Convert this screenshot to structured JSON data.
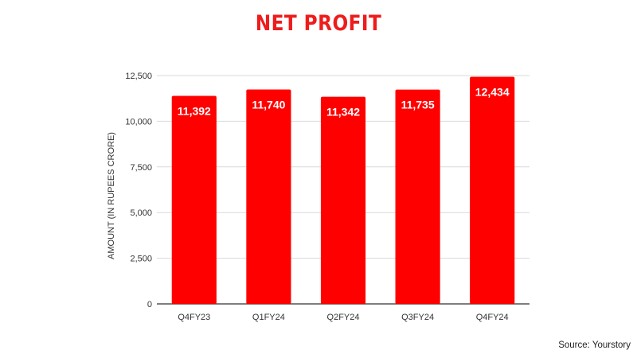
{
  "chart_data": {
    "type": "bar",
    "title": "NET PROFIT",
    "ylabel": "AMOUNT (IN RUPEES CRORE)",
    "xlabel": "",
    "categories": [
      "Q4FY23",
      "Q1FY24",
      "Q2FY24",
      "Q3FY24",
      "Q4FY24"
    ],
    "values": [
      11392,
      11740,
      11342,
      11735,
      12434
    ],
    "data_labels": [
      "11,392",
      "11,740",
      "11,342",
      "11,735",
      "12,434"
    ],
    "yticks": [
      0,
      2500,
      5000,
      7500,
      10000,
      12500
    ],
    "ytick_labels": [
      "0",
      "2,500",
      "5,000",
      "7,500",
      "10,000",
      "12,500"
    ],
    "ylim": [
      0,
      12500
    ],
    "grid": true,
    "bar_color": "#ff0000"
  },
  "source": "Source: Yourstory"
}
